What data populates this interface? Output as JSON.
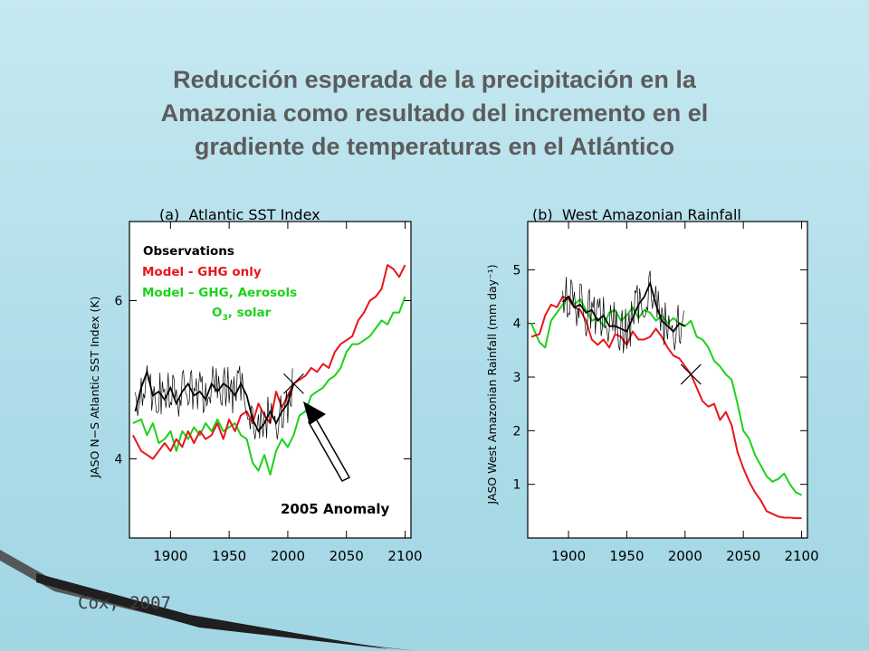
{
  "slide": {
    "title_lines": [
      "Reducción esperada de la precipitación en la",
      "Amazonia como resultado del incremento en el",
      "gradiente de temperaturas en el Atlántico"
    ],
    "credit": "Cox, 2007"
  },
  "colors": {
    "observations": "#000000",
    "ghg_only": "#e8161b",
    "ghg_aerosols": "#1bd21b",
    "title": "#5c5c5c"
  },
  "legend": {
    "observations": "Observations",
    "ghg_only": "Model - GHG only",
    "ghg_aerosols": "Model – GHG, Aerosols",
    "ghg_aerosols_line2_pre": "O",
    "ghg_aerosols_line2_sub": "3",
    "ghg_aerosols_line2_post": ", solar"
  },
  "annotation": {
    "anomaly": "2005 Anomaly"
  },
  "chart_data": [
    {
      "type": "line",
      "title": "(a)  Atlantic SST Index",
      "xlabel": "",
      "ylabel": "JASO N−S Atlantic SST Index (K)",
      "xlim": [
        1865,
        2105
      ],
      "ylim": [
        3.0,
        7.0
      ],
      "xticks": [
        1900,
        1950,
        2000,
        2050,
        2100
      ],
      "yticks": [
        4,
        6
      ],
      "x_tick_labels": [
        "1900",
        "1950",
        "2000",
        "2050",
        "2100"
      ],
      "y_tick_labels": [
        "4",
        "6"
      ],
      "marker_2005": {
        "x": 2005,
        "y": 4.95
      },
      "series": [
        {
          "name": "Observations",
          "key": "observations",
          "x": [
            1870,
            1875,
            1880,
            1885,
            1890,
            1895,
            1900,
            1905,
            1910,
            1915,
            1920,
            1925,
            1930,
            1935,
            1940,
            1945,
            1950,
            1955,
            1960,
            1965,
            1970,
            1975,
            1980,
            1985,
            1990,
            1995,
            2000,
            2005
          ],
          "y": [
            4.6,
            4.9,
            5.1,
            4.8,
            4.85,
            4.75,
            4.9,
            4.7,
            4.85,
            4.95,
            4.8,
            4.85,
            4.75,
            4.95,
            4.85,
            4.95,
            4.9,
            4.8,
            4.95,
            4.8,
            4.5,
            4.35,
            4.45,
            4.6,
            4.45,
            4.6,
            4.7,
            4.95
          ]
        },
        {
          "name": "Model - GHG only",
          "key": "ghg_only",
          "x": [
            1868,
            1875,
            1880,
            1885,
            1890,
            1895,
            1900,
            1905,
            1910,
            1915,
            1920,
            1925,
            1930,
            1935,
            1940,
            1945,
            1950,
            1955,
            1960,
            1965,
            1970,
            1975,
            1980,
            1985,
            1990,
            1995,
            2000,
            2005,
            2010,
            2015,
            2020,
            2025,
            2030,
            2035,
            2040,
            2045,
            2050,
            2055,
            2060,
            2065,
            2070,
            2075,
            2080,
            2085,
            2090,
            2095,
            2100
          ],
          "y": [
            4.3,
            4.1,
            4.05,
            4.0,
            4.1,
            4.2,
            4.1,
            4.25,
            4.15,
            4.35,
            4.2,
            4.35,
            4.25,
            4.3,
            4.45,
            4.25,
            4.5,
            4.35,
            4.55,
            4.6,
            4.45,
            4.7,
            4.55,
            4.45,
            4.85,
            4.65,
            4.8,
            4.95,
            5.0,
            5.05,
            5.15,
            5.1,
            5.2,
            5.15,
            5.35,
            5.45,
            5.5,
            5.55,
            5.75,
            5.85,
            6.0,
            6.05,
            6.15,
            6.45,
            6.4,
            6.3,
            6.45
          ]
        },
        {
          "name": "Model – GHG, Aerosols O3, solar",
          "key": "ghg_aerosols",
          "x": [
            1868,
            1875,
            1880,
            1885,
            1890,
            1895,
            1900,
            1905,
            1910,
            1915,
            1920,
            1925,
            1930,
            1935,
            1940,
            1945,
            1950,
            1955,
            1960,
            1965,
            1970,
            1975,
            1980,
            1985,
            1990,
            1995,
            2000,
            2005,
            2010,
            2015,
            2020,
            2025,
            2030,
            2035,
            2040,
            2045,
            2050,
            2055,
            2060,
            2065,
            2070,
            2075,
            2080,
            2085,
            2090,
            2095,
            2100
          ],
          "y": [
            4.45,
            4.5,
            4.3,
            4.45,
            4.2,
            4.25,
            4.35,
            4.1,
            4.35,
            4.25,
            4.4,
            4.3,
            4.45,
            4.35,
            4.5,
            4.35,
            4.4,
            4.45,
            4.3,
            4.25,
            3.95,
            3.85,
            4.05,
            3.8,
            4.1,
            4.25,
            4.15,
            4.3,
            4.55,
            4.6,
            4.8,
            4.85,
            4.9,
            5.0,
            5.05,
            5.15,
            5.35,
            5.45,
            5.45,
            5.5,
            5.55,
            5.65,
            5.75,
            5.7,
            5.85,
            5.85,
            6.05
          ]
        }
      ]
    },
    {
      "type": "line",
      "title": "(b)  West Amazonian Rainfall",
      "xlabel": "",
      "ylabel": "JASO West Amazonian Rainfall (mm day⁻¹)",
      "xlim": [
        1865,
        2105
      ],
      "ylim": [
        0.0,
        5.9
      ],
      "xticks": [
        1900,
        1950,
        2000,
        2050,
        2100
      ],
      "yticks": [
        1,
        2,
        3,
        4,
        5
      ],
      "x_tick_labels": [
        "1900",
        "1950",
        "2000",
        "2050",
        "2100"
      ],
      "y_tick_labels": [
        "1",
        "2",
        "3",
        "4",
        "5"
      ],
      "marker_2005": {
        "x": 2005,
        "y": 3.05
      },
      "series": [
        {
          "name": "Observations",
          "key": "observations",
          "x": [
            1895,
            1900,
            1905,
            1910,
            1915,
            1920,
            1925,
            1930,
            1935,
            1940,
            1945,
            1950,
            1955,
            1960,
            1965,
            1970,
            1975,
            1980,
            1985,
            1990,
            1995,
            2000
          ],
          "y": [
            4.4,
            4.5,
            4.3,
            4.35,
            4.2,
            4.25,
            4.05,
            4.15,
            3.95,
            3.95,
            3.9,
            3.85,
            4.1,
            4.35,
            4.5,
            4.75,
            4.35,
            4.05,
            3.95,
            3.85,
            4.0,
            3.95
          ]
        },
        {
          "name": "Model - GHG only",
          "key": "ghg_only",
          "x": [
            1868,
            1875,
            1880,
            1885,
            1890,
            1895,
            1900,
            1905,
            1910,
            1915,
            1920,
            1925,
            1930,
            1935,
            1940,
            1945,
            1950,
            1955,
            1960,
            1965,
            1970,
            1975,
            1980,
            1985,
            1990,
            1995,
            2000,
            2005,
            2010,
            2015,
            2020,
            2025,
            2030,
            2035,
            2040,
            2045,
            2050,
            2055,
            2060,
            2065,
            2070,
            2075,
            2080,
            2085,
            2090,
            2095,
            2100
          ],
          "y": [
            3.75,
            3.8,
            4.15,
            4.35,
            4.3,
            4.5,
            4.45,
            4.3,
            4.25,
            4.05,
            3.7,
            3.6,
            3.7,
            3.55,
            3.8,
            3.75,
            3.6,
            3.85,
            3.7,
            3.7,
            3.75,
            3.9,
            3.75,
            3.55,
            3.4,
            3.35,
            3.2,
            3.05,
            2.8,
            2.55,
            2.45,
            2.5,
            2.2,
            2.35,
            2.1,
            1.6,
            1.3,
            1.05,
            0.85,
            0.7,
            0.5,
            0.45,
            0.4,
            0.38,
            0.38,
            0.37,
            0.37
          ]
        },
        {
          "name": "Model – GHG, Aerosols O3, solar",
          "key": "ghg_aerosols",
          "x": [
            1868,
            1875,
            1880,
            1885,
            1890,
            1895,
            1900,
            1905,
            1910,
            1915,
            1920,
            1925,
            1930,
            1935,
            1940,
            1945,
            1950,
            1955,
            1960,
            1965,
            1970,
            1975,
            1980,
            1985,
            1990,
            1995,
            2000,
            2005,
            2010,
            2015,
            2020,
            2025,
            2030,
            2035,
            2040,
            2045,
            2050,
            2055,
            2060,
            2065,
            2070,
            2075,
            2080,
            2085,
            2090,
            2095,
            2100
          ],
          "y": [
            4.0,
            3.65,
            3.55,
            4.05,
            4.2,
            4.35,
            4.5,
            4.35,
            4.45,
            4.25,
            4.05,
            4.1,
            3.95,
            4.2,
            4.25,
            4.05,
            4.15,
            4.3,
            4.1,
            4.25,
            4.2,
            4.05,
            4.15,
            4.0,
            4.1,
            4.0,
            3.95,
            4.05,
            3.75,
            3.7,
            3.55,
            3.3,
            3.2,
            3.05,
            2.95,
            2.5,
            2.0,
            1.85,
            1.55,
            1.35,
            1.15,
            1.05,
            1.1,
            1.2,
            1.0,
            0.85,
            0.8
          ]
        }
      ]
    }
  ]
}
